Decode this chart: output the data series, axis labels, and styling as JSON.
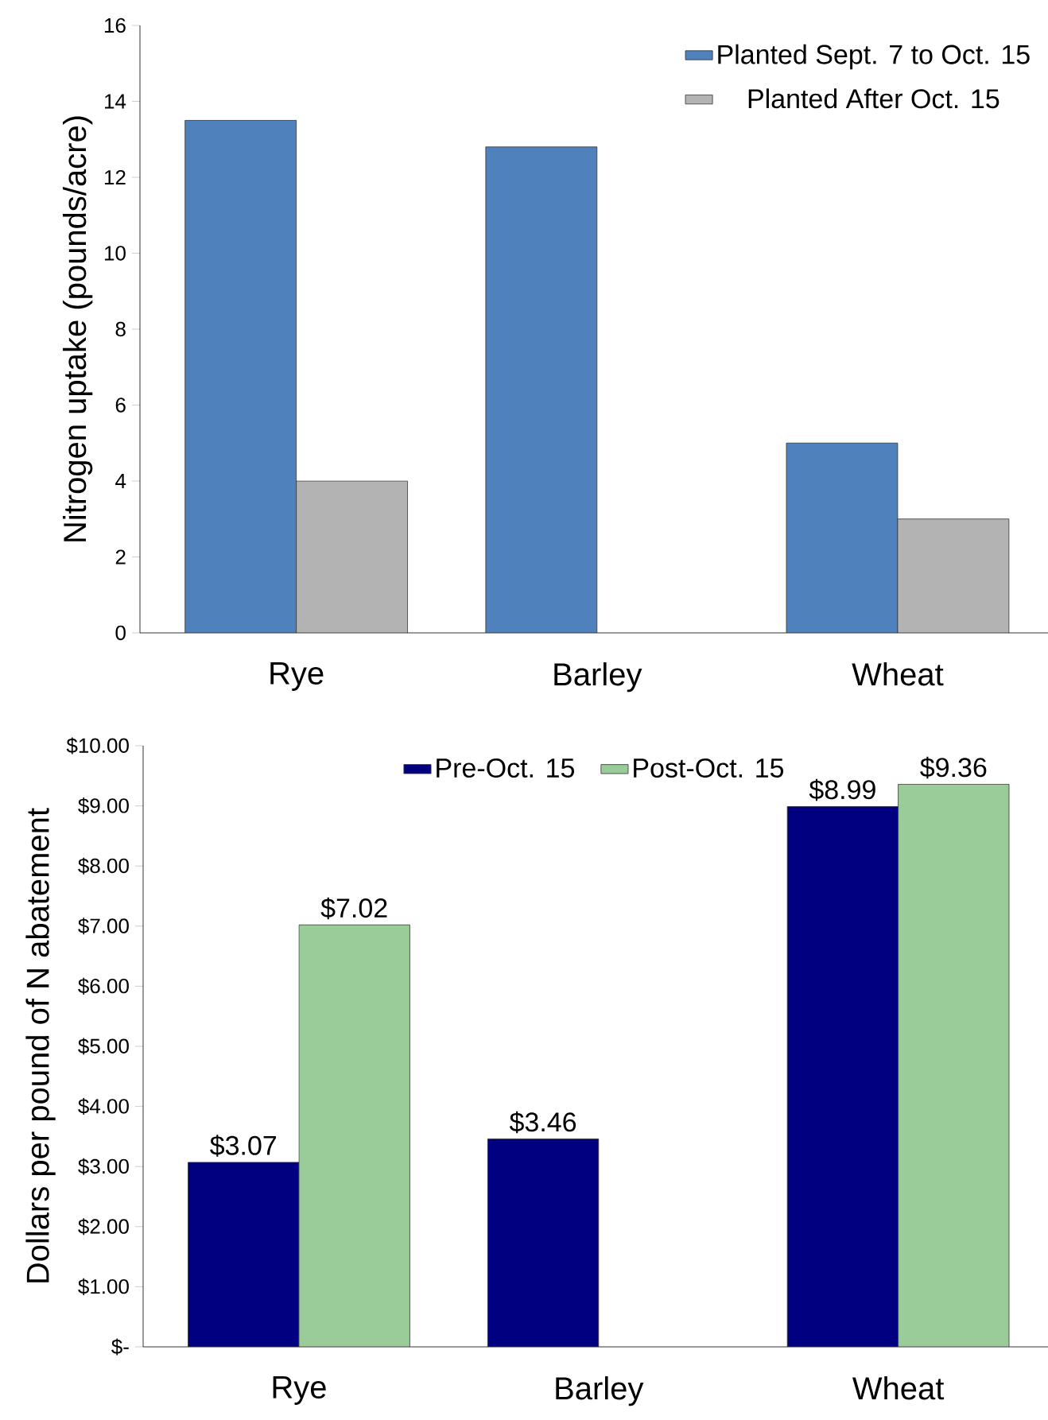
{
  "chart_data": [
    {
      "type": "bar",
      "categories": [
        "Rye",
        "Barley",
        "Wheat"
      ],
      "ylabel": "Nitrogen uptake (pounds/acre)",
      "ylim": [
        0,
        16
      ],
      "yticks": [
        0,
        2,
        4,
        6,
        8,
        10,
        12,
        14,
        16
      ],
      "legend": "top right",
      "series": [
        {
          "name": "Planted Sept. 7 to Oct. 15",
          "color": "#4f81bd",
          "values": [
            13.5,
            12.8,
            5.0
          ]
        },
        {
          "name": "Planted After Oct. 15",
          "color": "#b3b3b3",
          "values": [
            4.0,
            null,
            3.0
          ]
        }
      ]
    },
    {
      "type": "bar",
      "categories": [
        "Rye",
        "Barley",
        "Wheat"
      ],
      "ylabel": "Dollars per pound of N abatement",
      "ylim": [
        0,
        10
      ],
      "yticks": [
        {
          "value": 0,
          "label": "$-"
        },
        {
          "value": 1,
          "label": "$1.00"
        },
        {
          "value": 2,
          "label": "$2.00"
        },
        {
          "value": 3,
          "label": "$3.00"
        },
        {
          "value": 4,
          "label": "$4.00"
        },
        {
          "value": 5,
          "label": "$5.00"
        },
        {
          "value": 6,
          "label": "$6.00"
        },
        {
          "value": 7,
          "label": "$7.00"
        },
        {
          "value": 8,
          "label": "$8.00"
        },
        {
          "value": 9,
          "label": "$9.00"
        },
        {
          "value": 10,
          "label": "$10.00"
        }
      ],
      "legend": "top",
      "series": [
        {
          "name": "Pre-Oct. 15",
          "color": "#000080",
          "values": [
            3.07,
            3.46,
            8.99
          ],
          "value_labels": [
            "$3.07",
            "$3.46",
            "$8.99"
          ]
        },
        {
          "name": "Post-Oct. 15",
          "color": "#99cc99",
          "values": [
            7.02,
            null,
            9.36
          ],
          "value_labels": [
            "$7.02",
            null,
            "$9.36"
          ]
        }
      ]
    }
  ]
}
